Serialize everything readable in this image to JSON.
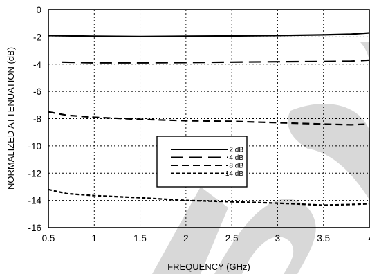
{
  "chart_data": {
    "type": "line",
    "xlabel": "FREQUENCY (GHz)",
    "ylabel": "NORMALIZED ATTENUATION (dB)",
    "xlim": [
      0.5,
      4
    ],
    "ylim": [
      -16,
      0
    ],
    "xticks": [
      "0.5",
      "1",
      "1.5",
      "2",
      "2.5",
      "3",
      "3.5",
      "4"
    ],
    "yticks": [
      "0",
      "-2",
      "-4",
      "-6",
      "-8",
      "-10",
      "-12",
      "-14",
      "-16"
    ],
    "grid": true,
    "legend_position": "center",
    "series": [
      {
        "name": "2 dB",
        "dash": "solid",
        "x": [
          0.5,
          1.0,
          1.5,
          2.0,
          2.5,
          3.0,
          3.5,
          3.8,
          4.0
        ],
        "y": [
          -1.9,
          -1.95,
          -1.97,
          -1.95,
          -1.93,
          -1.9,
          -1.85,
          -1.8,
          -1.7
        ]
      },
      {
        "name": "4 dB",
        "dash": "long-dash",
        "x": [
          0.65,
          1.0,
          1.5,
          2.0,
          2.5,
          3.0,
          3.5,
          3.8,
          4.0
        ],
        "y": [
          -3.85,
          -3.9,
          -3.9,
          -3.88,
          -3.85,
          -3.82,
          -3.8,
          -3.78,
          -3.7
        ]
      },
      {
        "name": "8 dB",
        "dash": "dash",
        "x": [
          0.5,
          0.7,
          1.0,
          1.5,
          2.0,
          2.5,
          3.0,
          3.5,
          3.8,
          4.0
        ],
        "y": [
          -7.5,
          -7.75,
          -7.9,
          -8.05,
          -8.15,
          -8.2,
          -8.3,
          -8.4,
          -8.45,
          -8.4
        ]
      },
      {
        "name": "14 dB",
        "dash": "short-dash",
        "x": [
          0.5,
          0.7,
          1.0,
          1.5,
          2.0,
          2.5,
          3.0,
          3.5,
          3.8,
          4.0
        ],
        "y": [
          -13.2,
          -13.5,
          -13.65,
          -13.8,
          -14.0,
          -14.1,
          -14.2,
          -14.35,
          -14.3,
          -14.25
        ]
      }
    ]
  }
}
